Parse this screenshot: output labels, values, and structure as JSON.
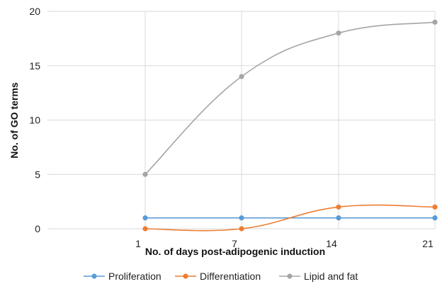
{
  "chart_data": {
    "type": "line",
    "categories": [
      "1",
      "7",
      "14",
      "21"
    ],
    "series": [
      {
        "name": "Proliferation",
        "values": [
          1,
          1,
          1,
          1
        ],
        "color": "#5b9bd5"
      },
      {
        "name": "Differentiation",
        "values": [
          0,
          0,
          2,
          2
        ],
        "color": "#ed7d31"
      },
      {
        "name": "Lipid and fat",
        "values": [
          5,
          14,
          18,
          19
        ],
        "color": "#a5a5a5"
      }
    ],
    "xlabel": "No. of days post-adipogenic induction",
    "ylabel": "No. of GO terms",
    "ylim": [
      0,
      20
    ],
    "yticks": [
      0,
      5,
      10,
      15,
      20
    ],
    "grid": true,
    "legend_position": "bottom",
    "smooth": true
  }
}
